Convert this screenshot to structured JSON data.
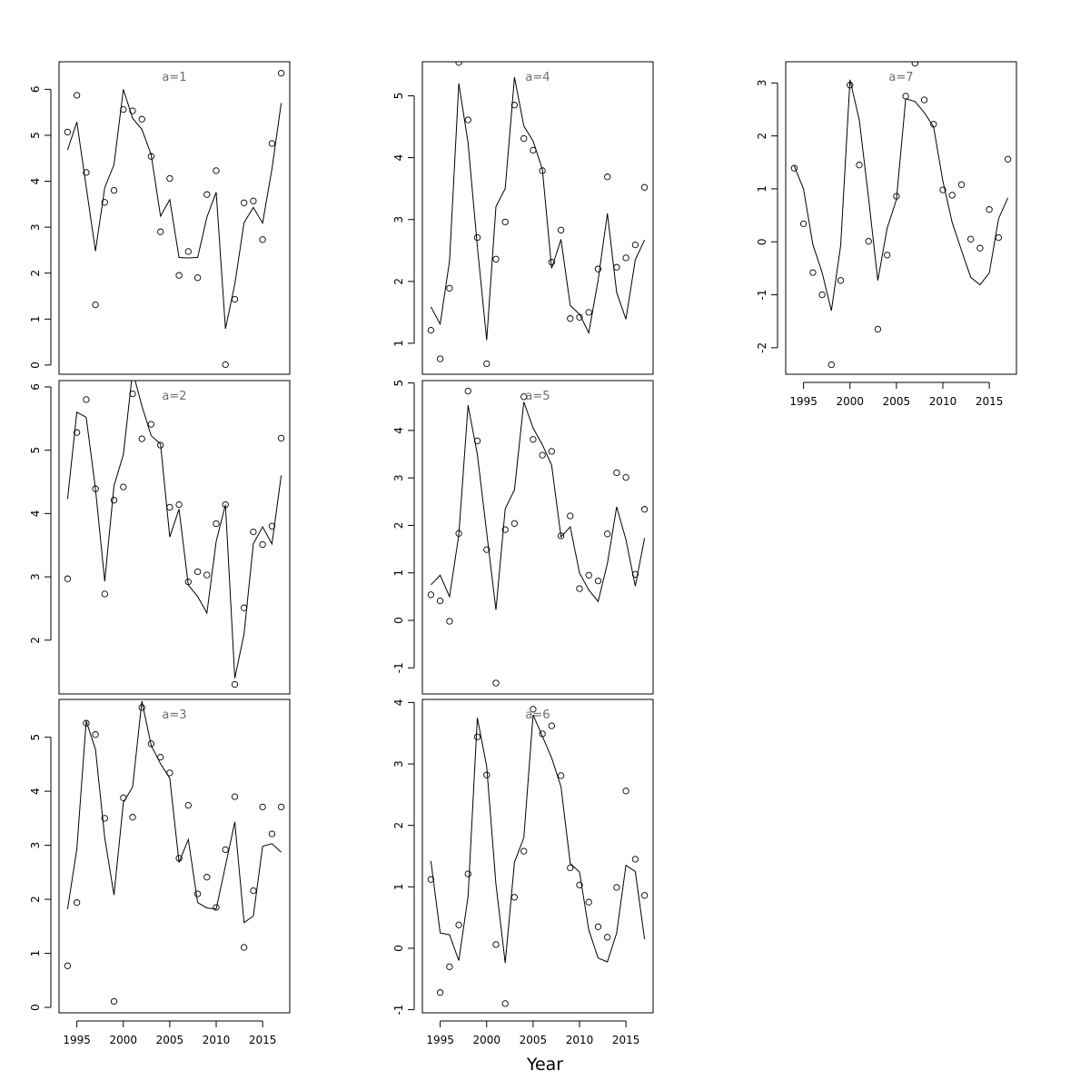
{
  "figure": {
    "xlabel": "Year"
  },
  "chart_data": [
    {
      "type": "line",
      "title": "a=1",
      "ylim": [
        -0.2,
        6.6
      ],
      "yticks": [
        0,
        1,
        2,
        3,
        4,
        5,
        6
      ],
      "x": [
        1994,
        1995,
        1996,
        1997,
        1998,
        1999,
        2000,
        2001,
        2002,
        2003,
        2004,
        2005,
        2006,
        2007,
        2008,
        2009,
        2010,
        2011,
        2012,
        2013,
        2014,
        2015,
        2016,
        2017
      ],
      "series": [
        {
          "kind": "points",
          "values": [
            5.07,
            5.87,
            4.19,
            1.31,
            3.54,
            3.8,
            5.56,
            5.53,
            5.35,
            4.54,
            2.9,
            4.06,
            1.95,
            2.47,
            1.9,
            3.71,
            4.23,
            0.01,
            1.43,
            3.53,
            3.57,
            2.73,
            4.82,
            6.35
          ]
        },
        {
          "kind": "line",
          "values": [
            4.68,
            5.29,
            3.88,
            2.48,
            3.86,
            4.36,
            6.0,
            5.37,
            5.13,
            4.58,
            3.24,
            3.6,
            2.34,
            2.33,
            2.34,
            3.22,
            3.76,
            0.79,
            1.76,
            3.1,
            3.43,
            3.09,
            4.27,
            5.7
          ]
        }
      ]
    },
    {
      "type": "line",
      "title": "a=2",
      "ylim": [
        1.15,
        6.1
      ],
      "yticks": [
        2,
        3,
        4,
        5,
        6
      ],
      "x": [
        1994,
        1995,
        1996,
        1997,
        1998,
        1999,
        2000,
        2001,
        2002,
        2003,
        2004,
        2005,
        2006,
        2007,
        2008,
        2009,
        2010,
        2011,
        2012,
        2013,
        2014,
        2015,
        2016,
        2017
      ],
      "series": [
        {
          "kind": "points",
          "values": [
            2.97,
            5.28,
            5.8,
            4.39,
            2.73,
            4.21,
            4.42,
            5.89,
            5.18,
            5.41,
            5.08,
            4.1,
            4.14,
            2.92,
            3.08,
            3.03,
            3.84,
            4.14,
            1.3,
            2.51,
            3.71,
            3.51,
            3.8,
            5.19
          ]
        },
        {
          "kind": "line",
          "values": [
            4.23,
            5.6,
            5.52,
            4.39,
            2.93,
            4.44,
            4.93,
            6.25,
            5.7,
            5.23,
            5.1,
            3.63,
            4.07,
            2.87,
            2.69,
            2.43,
            3.56,
            4.14,
            1.4,
            2.1,
            3.52,
            3.79,
            3.52,
            4.6
          ]
        }
      ]
    },
    {
      "type": "line",
      "title": "a=3",
      "ylim": [
        -0.1,
        5.7
      ],
      "yticks": [
        0,
        1,
        2,
        3,
        4,
        5
      ],
      "x": [
        1994,
        1995,
        1996,
        1997,
        1998,
        1999,
        2000,
        2001,
        2002,
        2003,
        2004,
        2005,
        2006,
        2007,
        2008,
        2009,
        2010,
        2011,
        2012,
        2013,
        2014,
        2015,
        2016,
        2017
      ],
      "series": [
        {
          "kind": "points",
          "values": [
            0.77,
            1.94,
            5.26,
            5.05,
            3.5,
            0.11,
            3.88,
            3.52,
            5.55,
            4.88,
            4.63,
            4.34,
            2.76,
            3.74,
            2.1,
            2.41,
            1.85,
            2.92,
            3.9,
            1.11,
            2.16,
            3.71,
            3.21,
            3.71
          ]
        },
        {
          "kind": "line",
          "values": [
            1.82,
            2.93,
            5.3,
            4.78,
            3.14,
            2.08,
            3.79,
            4.08,
            5.67,
            4.85,
            4.51,
            4.24,
            2.68,
            3.11,
            1.94,
            1.84,
            1.82,
            2.62,
            3.43,
            1.57,
            1.69,
            2.98,
            3.03,
            2.87
          ]
        }
      ]
    },
    {
      "type": "line",
      "title": "a=4",
      "ylim": [
        0.5,
        5.55
      ],
      "yticks": [
        1,
        2,
        3,
        4,
        5
      ],
      "x": [
        1994,
        1995,
        1996,
        1997,
        1998,
        1999,
        2000,
        2001,
        2002,
        2003,
        2004,
        2005,
        2006,
        2007,
        2008,
        2009,
        2010,
        2011,
        2012,
        2013,
        2014,
        2015,
        2016,
        2017
      ],
      "series": [
        {
          "kind": "points",
          "values": [
            1.21,
            0.75,
            1.89,
            5.54,
            4.61,
            2.71,
            0.67,
            2.36,
            2.96,
            4.85,
            4.31,
            4.12,
            3.79,
            2.31,
            2.83,
            1.4,
            1.42,
            1.5,
            2.2,
            3.69,
            2.23,
            2.38,
            2.59,
            3.52
          ]
        },
        {
          "kind": "line",
          "values": [
            1.59,
            1.31,
            2.33,
            5.2,
            4.24,
            2.57,
            1.05,
            3.21,
            3.5,
            5.3,
            4.51,
            4.27,
            3.81,
            2.21,
            2.68,
            1.61,
            1.47,
            1.17,
            2.02,
            3.1,
            1.82,
            1.39,
            2.35,
            2.67
          ]
        }
      ]
    },
    {
      "type": "line",
      "title": "a=5",
      "ylim": [
        -1.55,
        5.05
      ],
      "yticks": [
        -1,
        0,
        1,
        2,
        3,
        4,
        5
      ],
      "x": [
        1994,
        1995,
        1996,
        1997,
        1998,
        1999,
        2000,
        2001,
        2002,
        2003,
        2004,
        2005,
        2006,
        2007,
        2008,
        2009,
        2010,
        2011,
        2012,
        2013,
        2014,
        2015,
        2016,
        2017
      ],
      "series": [
        {
          "kind": "points",
          "values": [
            0.54,
            0.41,
            -0.02,
            1.83,
            4.83,
            3.78,
            1.49,
            -1.32,
            1.91,
            2.04,
            4.71,
            3.81,
            3.48,
            3.56,
            1.78,
            2.2,
            0.67,
            0.95,
            0.83,
            1.82,
            3.11,
            3.01,
            0.97,
            2.34
          ]
        },
        {
          "kind": "line",
          "values": [
            0.75,
            0.95,
            0.5,
            1.8,
            4.53,
            3.5,
            1.85,
            0.22,
            2.35,
            2.75,
            4.6,
            4.05,
            3.7,
            3.27,
            1.76,
            1.97,
            1.0,
            0.64,
            0.4,
            1.2,
            2.39,
            1.7,
            0.72,
            1.73
          ]
        }
      ]
    },
    {
      "type": "line",
      "title": "a=6",
      "ylim": [
        -1.05,
        4.05
      ],
      "yticks": [
        -1,
        0,
        1,
        2,
        3,
        4
      ],
      "x": [
        1994,
        1995,
        1996,
        1997,
        1998,
        1999,
        2000,
        2001,
        2002,
        2003,
        2004,
        2005,
        2006,
        2007,
        2008,
        2009,
        2010,
        2011,
        2012,
        2013,
        2014,
        2015,
        2016,
        2017
      ],
      "series": [
        {
          "kind": "points",
          "values": [
            1.12,
            -0.72,
            -0.3,
            0.38,
            1.21,
            3.44,
            2.82,
            0.06,
            -0.9,
            0.83,
            1.58,
            3.89,
            3.49,
            3.62,
            2.81,
            1.31,
            1.03,
            0.75,
            0.35,
            0.18,
            0.99,
            2.56,
            1.45,
            0.86
          ]
        },
        {
          "kind": "line",
          "values": [
            1.42,
            0.25,
            0.22,
            -0.2,
            0.84,
            3.75,
            2.96,
            1.04,
            -0.24,
            1.4,
            1.8,
            3.8,
            3.45,
            3.1,
            2.63,
            1.38,
            1.24,
            0.3,
            -0.16,
            -0.22,
            0.25,
            1.35,
            1.25,
            0.15
          ]
        }
      ]
    },
    {
      "type": "line",
      "title": "a=7",
      "ylim": [
        -2.5,
        3.4
      ],
      "yticks": [
        -2,
        -1,
        0,
        1,
        2,
        3
      ],
      "x": [
        1994,
        1995,
        1996,
        1997,
        1998,
        1999,
        2000,
        2001,
        2002,
        2003,
        2004,
        2005,
        2006,
        2007,
        2008,
        2009,
        2010,
        2011,
        2012,
        2013,
        2014,
        2015,
        2016,
        2017
      ],
      "series": [
        {
          "kind": "points",
          "values": [
            1.39,
            0.34,
            -0.58,
            -1.0,
            -2.32,
            -0.73,
            2.96,
            1.45,
            0.01,
            -1.65,
            -0.25,
            0.86,
            2.75,
            3.37,
            2.68,
            2.22,
            0.98,
            0.88,
            1.08,
            0.05,
            -0.12,
            0.61,
            0.08,
            1.56
          ]
        },
        {
          "kind": "line",
          "values": [
            1.43,
            1.0,
            -0.05,
            -0.58,
            -1.3,
            -0.07,
            3.06,
            2.3,
            0.83,
            -0.73,
            0.26,
            0.8,
            2.7,
            2.65,
            2.44,
            2.17,
            1.15,
            0.37,
            -0.16,
            -0.67,
            -0.81,
            -0.59,
            0.44,
            0.83
          ]
        }
      ]
    }
  ]
}
